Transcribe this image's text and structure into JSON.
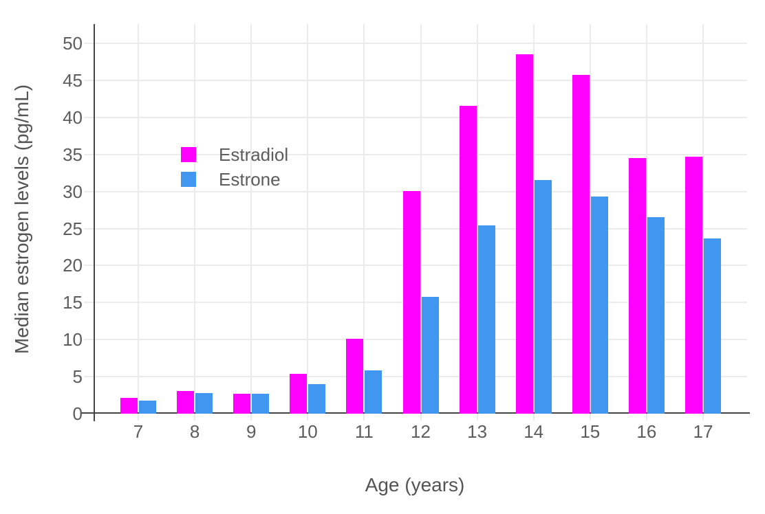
{
  "chart_data": {
    "type": "bar",
    "title": "",
    "xlabel": "Age (years)",
    "ylabel": "Median estrogen levels (pg/mL)",
    "categories": [
      "7",
      "8",
      "9",
      "10",
      "11",
      "12",
      "13",
      "14",
      "15",
      "16",
      "17"
    ],
    "series": [
      {
        "name": "Estradiol",
        "color": "#FF00FF",
        "values": [
          2.2,
          3.1,
          2.7,
          5.4,
          10.2,
          30.1,
          41.6,
          48.6,
          45.8,
          34.6,
          34.7
        ]
      },
      {
        "name": "Estrone",
        "color": "#4196F0",
        "values": [
          1.8,
          2.8,
          2.7,
          4.0,
          5.9,
          15.8,
          25.5,
          31.6,
          29.4,
          26.6,
          23.7
        ]
      }
    ],
    "ylim": [
      0,
      52.6
    ],
    "yticks": [
      0,
      5,
      10,
      15,
      20,
      25,
      30,
      35,
      40,
      45,
      50
    ],
    "grid": true,
    "legend_position": "inside-top-left",
    "colors": {
      "grid": "#EBEBEB",
      "axis_line": "#444444",
      "tick_text": "#5C5C5C",
      "title_text": "#545454",
      "background": "#FFFFFF"
    }
  }
}
